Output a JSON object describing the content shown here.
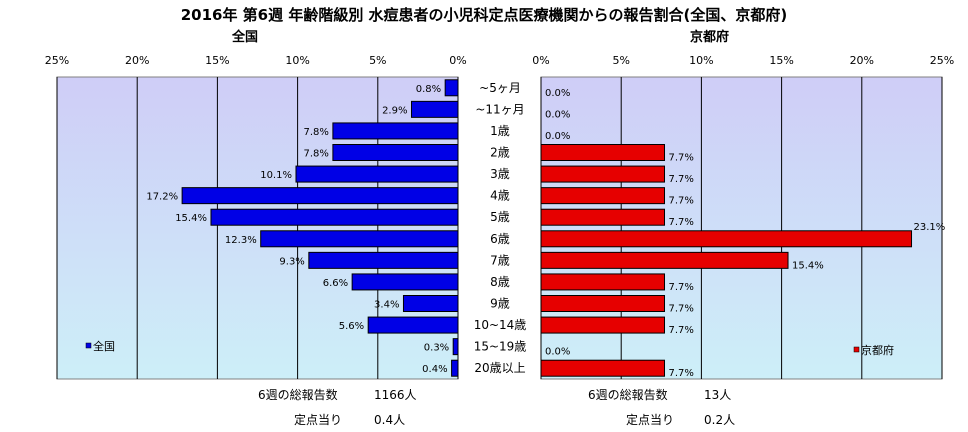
{
  "title": "2016年 第6週 年齢階級別 水痘患者の小児科定点医療機関からの報告割合(全国、京都府)",
  "colors": {
    "left_bar": "#0000e6",
    "right_bar": "#e60000",
    "plot_bg_top": "#cfcdf7",
    "plot_bg_bottom": "#cdeff8",
    "grid": "#000000"
  },
  "left_panel": {
    "title": "全国",
    "legend": "全国",
    "footer_total_label": "6週の総報告数",
    "footer_total_value": "1166人",
    "footer_per_label": "定点当り",
    "footer_per_value": "0.4人"
  },
  "right_panel": {
    "title": "京都府",
    "legend": "京都府",
    "footer_total_label": "6週の総報告数",
    "footer_total_value": "13人",
    "footer_per_label": "定点当り",
    "footer_per_value": "0.2人"
  },
  "chart_data": [
    {
      "type": "bar",
      "orientation": "horizontal",
      "direction": "right-to-left",
      "categories": [
        "~5ヶ月",
        "~11ヶ月",
        "1歳",
        "2歳",
        "3歳",
        "4歳",
        "5歳",
        "6歳",
        "7歳",
        "8歳",
        "9歳",
        "10~14歳",
        "15~19歳",
        "20歳以上"
      ],
      "series": [
        {
          "name": "全国",
          "values": [
            0.8,
            2.9,
            7.8,
            7.8,
            10.1,
            17.2,
            15.4,
            12.3,
            9.3,
            6.6,
            3.4,
            5.6,
            0.3,
            0.4
          ]
        }
      ],
      "data_labels": [
        "0.8%",
        "2.9%",
        "7.8%",
        "7.8%",
        "10.1%",
        "17.2%",
        "15.4%",
        "12.3%",
        "9.3%",
        "6.6%",
        "3.4%",
        "5.6%",
        "0.3%",
        "0.4%"
      ],
      "xlim": [
        0,
        25
      ],
      "ticks": [
        "0%",
        "5%",
        "10%",
        "15%",
        "20%",
        "25%"
      ],
      "grid": true,
      "legend_position": "bottom-left"
    },
    {
      "type": "bar",
      "orientation": "horizontal",
      "direction": "left-to-right",
      "categories": [
        "~5ヶ月",
        "~11ヶ月",
        "1歳",
        "2歳",
        "3歳",
        "4歳",
        "5歳",
        "6歳",
        "7歳",
        "8歳",
        "9歳",
        "10~14歳",
        "15~19歳",
        "20歳以上"
      ],
      "series": [
        {
          "name": "京都府",
          "values": [
            0.0,
            0.0,
            0.0,
            7.7,
            7.7,
            7.7,
            7.7,
            23.1,
            15.4,
            7.7,
            7.7,
            7.7,
            0.0,
            7.7
          ]
        }
      ],
      "data_labels": [
        "0.0%",
        "0.0%",
        "0.0%",
        "7.7%",
        "7.7%",
        "7.7%",
        "7.7%",
        "23.1%",
        "15.4%",
        "7.7%",
        "7.7%",
        "7.7%",
        "0.0%",
        "7.7%"
      ],
      "xlim": [
        0,
        25
      ],
      "ticks": [
        "0%",
        "5%",
        "10%",
        "15%",
        "20%",
        "25%"
      ],
      "grid": true,
      "legend_position": "bottom-right"
    }
  ]
}
